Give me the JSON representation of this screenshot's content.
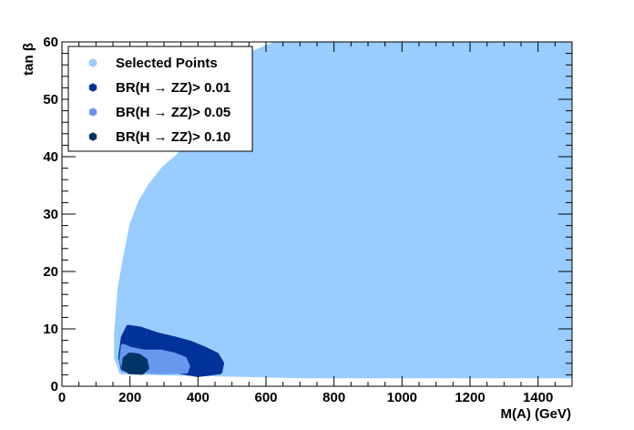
{
  "chart_data": {
    "type": "scatter",
    "xlabel": "M(A) (GeV)",
    "ylabel": "tan β",
    "xlim": [
      0,
      1500
    ],
    "ylim": [
      0,
      60
    ],
    "x_ticks": [
      0,
      200,
      400,
      600,
      800,
      1000,
      1200,
      1400
    ],
    "y_ticks": [
      0,
      10,
      20,
      30,
      40,
      50,
      60
    ],
    "x_tick_labels": [
      "0",
      "200",
      "400",
      "600",
      "800",
      "1000",
      "1200",
      "1400"
    ],
    "y_tick_labels": [
      "0",
      "10",
      "20",
      "30",
      "40",
      "50",
      "60"
    ],
    "legend_placement": "top-left",
    "grid": false,
    "series": [
      {
        "name": "Selected Points",
        "color": "#99ccff",
        "marker": "circle",
        "region": [
          [
            160,
            9
          ],
          [
            170,
            17
          ],
          [
            185,
            22
          ],
          [
            205,
            28
          ],
          [
            230,
            32
          ],
          [
            260,
            35
          ],
          [
            300,
            38
          ],
          [
            340,
            40
          ],
          [
            380,
            43
          ],
          [
            420,
            47
          ],
          [
            460,
            52
          ],
          [
            510,
            56
          ],
          [
            560,
            58
          ],
          [
            620,
            59.5
          ],
          [
            700,
            60
          ],
          [
            1500,
            60
          ],
          [
            1500,
            1.8
          ],
          [
            700,
            1.8
          ],
          [
            560,
            2
          ],
          [
            300,
            2.3
          ],
          [
            175,
            2.5
          ],
          [
            160,
            5
          ]
        ]
      },
      {
        "name": "BR(H → ZZ)> 0.01",
        "color": "#003399",
        "marker": "circle",
        "region": [
          [
            180,
            8.5
          ],
          [
            195,
            10.3
          ],
          [
            230,
            10
          ],
          [
            280,
            9
          ],
          [
            330,
            8.3
          ],
          [
            380,
            7.5
          ],
          [
            420,
            6.5
          ],
          [
            455,
            5.5
          ],
          [
            470,
            4
          ],
          [
            465,
            2.5
          ],
          [
            400,
            2
          ],
          [
            350,
            2.5
          ],
          [
            330,
            3.5
          ],
          [
            250,
            4
          ],
          [
            180,
            3
          ],
          [
            172,
            5
          ]
        ]
      },
      {
        "name": "BR(H → ZZ)> 0.05",
        "color": "#6699ee",
        "marker": "circle",
        "region": [
          [
            180,
            7
          ],
          [
            200,
            6.5
          ],
          [
            240,
            6
          ],
          [
            290,
            6
          ],
          [
            330,
            5.5
          ],
          [
            360,
            4.8
          ],
          [
            370,
            3.5
          ],
          [
            365,
            2.6
          ],
          [
            300,
            2.5
          ],
          [
            240,
            2.6
          ],
          [
            185,
            2.8
          ],
          [
            175,
            4.5
          ]
        ]
      },
      {
        "name": "BR(H → ZZ)> 0.10",
        "color": "#003366",
        "marker": "circle",
        "region": [
          [
            185,
            4.8
          ],
          [
            200,
            5.5
          ],
          [
            225,
            5.3
          ],
          [
            245,
            4.5
          ],
          [
            250,
            3.2
          ],
          [
            235,
            2.4
          ],
          [
            200,
            2.5
          ],
          [
            182,
            3.2
          ]
        ]
      }
    ]
  }
}
